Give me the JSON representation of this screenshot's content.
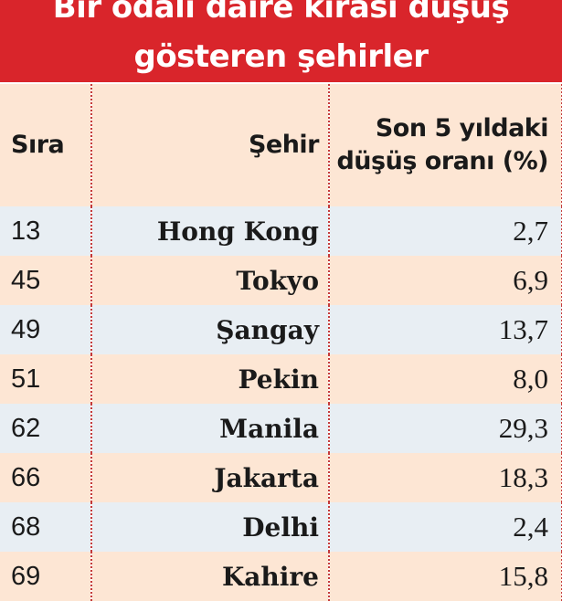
{
  "title_line1": "Bir odalı daire kirası düşüş",
  "title_line2": "gösteren şehirler",
  "colors": {
    "title_bg": "#d9252b",
    "row_peach": "#fde6d4",
    "row_blue": "#e8eef3",
    "divider": "#c43a3a"
  },
  "chart_data": {
    "type": "table",
    "title": "Bir odalı daire kirası düşüş gösteren şehirler",
    "columns": [
      "Sıra",
      "Şehir",
      "Son 5 yıldaki düşüş oranı (%)"
    ],
    "rows": [
      [
        "13",
        "Hong Kong",
        "2,7"
      ],
      [
        "45",
        "Tokyo",
        "6,9"
      ],
      [
        "49",
        "Şangay",
        "13,7"
      ],
      [
        "51",
        "Pekin",
        "8,0"
      ],
      [
        "62",
        "Manila",
        "29,3"
      ],
      [
        "66",
        "Jakarta",
        "18,3"
      ],
      [
        "68",
        "Delhi",
        "2,4"
      ],
      [
        "69",
        "Kahire",
        "15,8"
      ]
    ]
  }
}
